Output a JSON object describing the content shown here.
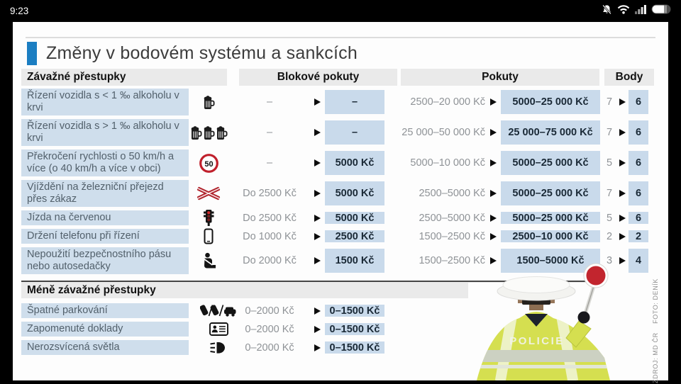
{
  "status_bar": {
    "time": "9:23",
    "icons": [
      "bell-muted-icon",
      "wifi-icon",
      "signal-icon",
      "battery-icon"
    ]
  },
  "infographic": {
    "title": "Změny v bodovém systému a sankcích",
    "columns": {
      "offense": "Závažné přestupky",
      "block_fines": "Blokové pokuty",
      "fines": "Pokuty",
      "points": "Body"
    },
    "serious_rows": [
      {
        "label": "Řízení vozidla s < 1 ‰ alkoholu v krvi",
        "icon": "beer-icon",
        "block_old": "–",
        "block_new": "–",
        "fine_old": "2500–20 000 Kč",
        "fine_new": "5000–25 000 Kč",
        "points_old": "7",
        "points_new": "6"
      },
      {
        "label": "Řízení vozidla s > 1 ‰ alkoholu v krvi",
        "icon": "beers-icon",
        "block_old": "–",
        "block_new": "–",
        "fine_old": "25 000–50 000 Kč",
        "fine_new": "25 000–75 000 Kč",
        "points_old": "7",
        "points_new": "6"
      },
      {
        "label": "Překročení rychlosti o 50 km/h a více (o 40 km/h a více v obci)",
        "icon": "speed-limit-50-icon",
        "block_old": "–",
        "block_new": "5000 Kč",
        "fine_old": "5000–10 000 Kč",
        "fine_new": "5000–25 000 Kč",
        "points_old": "5",
        "points_new": "6"
      },
      {
        "label": "Vjíždění na železniční přejezd přes zákaz",
        "icon": "railway-crossing-icon",
        "block_old": "Do 2500 Kč",
        "block_new": "5000 Kč",
        "fine_old": "2500–5000 Kč",
        "fine_new": "5000–25 000 Kč",
        "points_old": "7",
        "points_new": "6"
      },
      {
        "label": "Jízda na červenou",
        "icon": "traffic-light-icon",
        "block_old": "Do 2500 Kč",
        "block_new": "5000 Kč",
        "fine_old": "2500–5000 Kč",
        "fine_new": "5000–25 000 Kč",
        "points_old": "5",
        "points_new": "6"
      },
      {
        "label": "Držení telefonu při řízení",
        "icon": "phone-icon",
        "block_old": "Do 1000 Kč",
        "block_new": "2500 Kč",
        "fine_old": "1500–2500 Kč",
        "fine_new": "2500–10 000 Kč",
        "points_old": "2",
        "points_new": "2"
      },
      {
        "label": "Nepoužití bezpečnostního pásu nebo autosedačky",
        "icon": "seatbelt-icon",
        "block_old": "Do 2000 Kč",
        "block_new": "1500 Kč",
        "fine_old": "1500–2500 Kč",
        "fine_new": "1500–5000 Kč",
        "points_old": "3",
        "points_new": "4"
      }
    ],
    "minor_header": "Méně závažné přestupky",
    "minor_rows": [
      {
        "label": "Špatné parkování",
        "icon": "parking-cars-icon",
        "fine_old": "0–2000 Kč",
        "fine_new": "0–1500 Kč"
      },
      {
        "label": "Zapomenuté doklady",
        "icon": "id-card-icon",
        "fine_old": "0–2000 Kč",
        "fine_new": "0–1500 Kč"
      },
      {
        "label": "Nerozsvícená světla",
        "icon": "headlight-icon",
        "fine_old": "0–2000 Kč",
        "fine_new": "0–1500 Kč"
      }
    ],
    "officer_jacket_text": "POLICIE",
    "credit": "ZDROJ: MD ČR    FOTO: DENÍK",
    "colors": {
      "accent_blue": "#1b7ec2",
      "label_bg": "#cfdeec",
      "highlight_bg": "#c9daeb",
      "header_bg": "#eaeaea",
      "old_text": "#8e9296",
      "new_text": "#1a2936",
      "sign_red": "#c0202c",
      "hivis_green": "#d5df50"
    }
  }
}
